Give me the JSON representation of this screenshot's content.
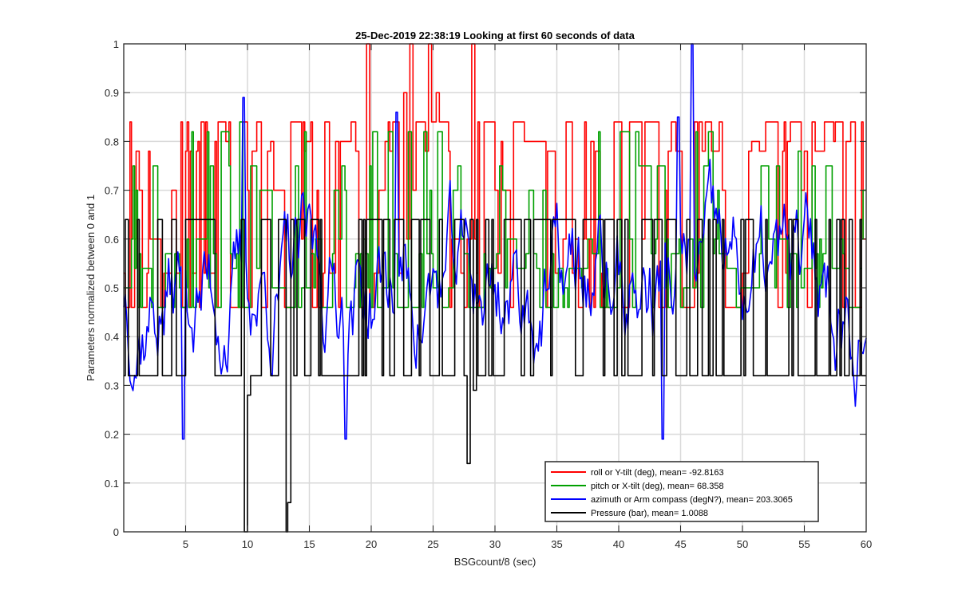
{
  "chart_data": {
    "type": "line",
    "title": "25-Dec-2019 22:38:19 Looking at first 60 seconds of data",
    "xlabel": "BSGcount/8 (sec)",
    "ylabel": "Parameters normalized between 0 and 1",
    "xlim": [
      0,
      60
    ],
    "ylim": [
      0,
      1
    ],
    "xticks": [
      5,
      10,
      15,
      20,
      25,
      30,
      35,
      40,
      45,
      50,
      55,
      60
    ],
    "yticks": [
      0,
      0.1,
      0.2,
      0.3,
      0.4,
      0.5,
      0.6,
      0.7,
      0.8,
      0.9,
      1
    ],
    "grid": true,
    "legend_position": "bottom-right",
    "series": [
      {
        "name": "roll or Y-tilt (deg), mean= -92.8163",
        "color": "#ff0000",
        "levels": [
          0.46,
          0.53,
          0.6,
          0.7,
          0.78,
          0.8,
          0.84
        ],
        "peaks": [
          [
            19.6,
            1.0
          ],
          [
            23.1,
            1.0
          ],
          [
            24.6,
            1.0
          ],
          [
            28.1,
            1.0
          ],
          [
            22.6,
            0.9
          ],
          [
            25.3,
            0.9
          ]
        ]
      },
      {
        "name": "pitch or X-tilt (deg), mean= 68.358",
        "color": "#00a000",
        "levels": [
          0.46,
          0.5,
          0.54,
          0.57,
          0.6,
          0.7,
          0.75,
          0.82
        ],
        "peaks": [
          [
            9.4,
            0.84
          ],
          [
            20.2,
            0.82
          ],
          [
            23.0,
            0.82
          ],
          [
            24.3,
            0.82
          ],
          [
            17.6,
            0.75
          ],
          [
            54.5,
            0.78
          ]
        ]
      },
      {
        "name": "azimuth or Arm compass (degN?), mean= 203.3065",
        "color": "#0000ff",
        "min": 0.19,
        "max": 1.0,
        "peaks": [
          [
            45.9,
            1.0
          ],
          [
            9.6,
            0.89
          ],
          [
            22.0,
            0.86
          ],
          [
            44.8,
            0.85
          ],
          [
            4.8,
            0.19
          ],
          [
            17.9,
            0.19
          ],
          [
            43.5,
            0.19
          ]
        ]
      },
      {
        "name": "Pressure (bar), mean= 1.0088",
        "color": "#000000",
        "levels": [
          0.32,
          0.64
        ],
        "dips": [
          [
            9.8,
            0.0
          ],
          [
            13.1,
            0.0
          ],
          [
            13.2,
            0.06
          ],
          [
            27.8,
            0.14
          ],
          [
            10.0,
            0.28
          ],
          [
            28.2,
            0.29
          ]
        ]
      }
    ]
  }
}
